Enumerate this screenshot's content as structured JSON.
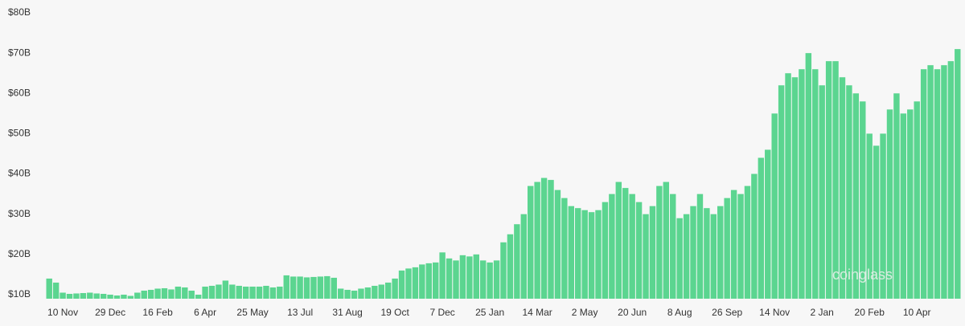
{
  "chart_data": {
    "type": "bar",
    "watermark": "coinglass",
    "categories": [
      null,
      null,
      "10 Nov",
      null,
      null,
      null,
      null,
      null,
      null,
      "29 Dec",
      null,
      null,
      null,
      null,
      null,
      null,
      "16 Feb",
      null,
      null,
      null,
      null,
      null,
      null,
      "6 Apr",
      null,
      null,
      null,
      null,
      null,
      null,
      "25 May",
      null,
      null,
      null,
      null,
      null,
      null,
      "13 Jul",
      null,
      null,
      null,
      null,
      null,
      null,
      "31 Aug",
      null,
      null,
      null,
      null,
      null,
      null,
      "19 Oct",
      null,
      null,
      null,
      null,
      null,
      null,
      "7 Dec",
      null,
      null,
      null,
      null,
      null,
      null,
      "25 Jan",
      null,
      null,
      null,
      null,
      null,
      null,
      "14 Mar",
      null,
      null,
      null,
      null,
      null,
      null,
      "2 May",
      null,
      null,
      null,
      null,
      null,
      null,
      "20 Jun",
      null,
      null,
      null,
      null,
      null,
      null,
      "8 Aug",
      null,
      null,
      null,
      null,
      null,
      null,
      "26 Sep",
      null,
      null,
      null,
      null,
      null,
      null,
      "14 Nov",
      null,
      null,
      null,
      null,
      null,
      null,
      "2 Jan",
      null,
      null,
      null,
      null,
      null,
      null,
      "20 Feb",
      null,
      null,
      null,
      null,
      null,
      null,
      "10 Apr",
      null,
      null,
      null,
      null,
      null,
      null
    ],
    "values": [
      14,
      13,
      10.5,
      10.2,
      10.3,
      10.4,
      10.5,
      10.3,
      10.2,
      10,
      9.8,
      10,
      9.7,
      10.5,
      11,
      11.2,
      11.5,
      11.6,
      11.3,
      12,
      11.8,
      11,
      10,
      12,
      12.2,
      12.5,
      13.5,
      12.5,
      12.2,
      12,
      12,
      12,
      12.2,
      11.8,
      12,
      14.8,
      14.5,
      14.5,
      14.3,
      14.4,
      14.5,
      14.6,
      14.2,
      11.5,
      11.2,
      11,
      11.5,
      11.8,
      12.2,
      12.5,
      13,
      14,
      16,
      16.5,
      16.8,
      17.5,
      17.8,
      18,
      20.5,
      19,
      18.5,
      19.8,
      19.5,
      20,
      18.5,
      18,
      18.5,
      23,
      25,
      27.5,
      30,
      37,
      38,
      39,
      38.5,
      36,
      34,
      32,
      31.5,
      31,
      30.5,
      31,
      33,
      35,
      38,
      36.5,
      35,
      33,
      30,
      32,
      37,
      38,
      35,
      29,
      30,
      32,
      35,
      31.5,
      30,
      32,
      34,
      36,
      35,
      37,
      40,
      44,
      46,
      55,
      62,
      65,
      64,
      66,
      70,
      66,
      62,
      68,
      68,
      64,
      62,
      60,
      58,
      50,
      47,
      50,
      56,
      60,
      55,
      56,
      58,
      66,
      67,
      66,
      67,
      68,
      71
    ],
    "color": "#5bd590",
    "ylim": [
      9,
      80
    ],
    "yticks": [
      {
        "value": 10,
        "label": "$10B"
      },
      {
        "value": 20,
        "label": "$20B"
      },
      {
        "value": 30,
        "label": "$30B"
      },
      {
        "value": 40,
        "label": "$40B"
      },
      {
        "value": 50,
        "label": "$50B"
      },
      {
        "value": 60,
        "label": "$60B"
      },
      {
        "value": 70,
        "label": "$70B"
      },
      {
        "value": 80,
        "label": "$80B"
      }
    ],
    "grid": false
  }
}
